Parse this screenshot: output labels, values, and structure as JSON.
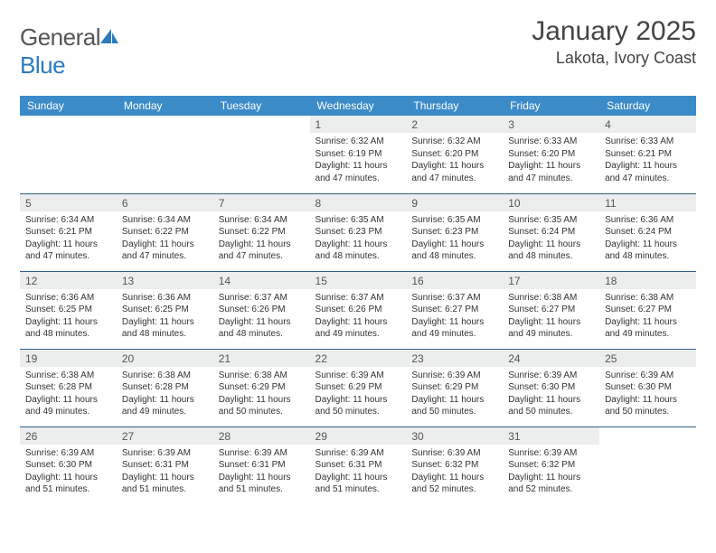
{
  "logo": {
    "text_general": "General",
    "text_blue": "Blue"
  },
  "title": "January 2025",
  "location": "Lakota, Ivory Coast",
  "header_bg": "#3b8bc9",
  "daynum_bg": "#eceded",
  "border_color": "#2f5f8a",
  "day_headers": [
    "Sunday",
    "Monday",
    "Tuesday",
    "Wednesday",
    "Thursday",
    "Friday",
    "Saturday"
  ],
  "weeks": [
    [
      null,
      null,
      null,
      {
        "n": "1",
        "sr": "6:32 AM",
        "ss": "6:19 PM",
        "dl": "11 hours and 47 minutes."
      },
      {
        "n": "2",
        "sr": "6:32 AM",
        "ss": "6:20 PM",
        "dl": "11 hours and 47 minutes."
      },
      {
        "n": "3",
        "sr": "6:33 AM",
        "ss": "6:20 PM",
        "dl": "11 hours and 47 minutes."
      },
      {
        "n": "4",
        "sr": "6:33 AM",
        "ss": "6:21 PM",
        "dl": "11 hours and 47 minutes."
      }
    ],
    [
      {
        "n": "5",
        "sr": "6:34 AM",
        "ss": "6:21 PM",
        "dl": "11 hours and 47 minutes."
      },
      {
        "n": "6",
        "sr": "6:34 AM",
        "ss": "6:22 PM",
        "dl": "11 hours and 47 minutes."
      },
      {
        "n": "7",
        "sr": "6:34 AM",
        "ss": "6:22 PM",
        "dl": "11 hours and 47 minutes."
      },
      {
        "n": "8",
        "sr": "6:35 AM",
        "ss": "6:23 PM",
        "dl": "11 hours and 48 minutes."
      },
      {
        "n": "9",
        "sr": "6:35 AM",
        "ss": "6:23 PM",
        "dl": "11 hours and 48 minutes."
      },
      {
        "n": "10",
        "sr": "6:35 AM",
        "ss": "6:24 PM",
        "dl": "11 hours and 48 minutes."
      },
      {
        "n": "11",
        "sr": "6:36 AM",
        "ss": "6:24 PM",
        "dl": "11 hours and 48 minutes."
      }
    ],
    [
      {
        "n": "12",
        "sr": "6:36 AM",
        "ss": "6:25 PM",
        "dl": "11 hours and 48 minutes."
      },
      {
        "n": "13",
        "sr": "6:36 AM",
        "ss": "6:25 PM",
        "dl": "11 hours and 48 minutes."
      },
      {
        "n": "14",
        "sr": "6:37 AM",
        "ss": "6:26 PM",
        "dl": "11 hours and 48 minutes."
      },
      {
        "n": "15",
        "sr": "6:37 AM",
        "ss": "6:26 PM",
        "dl": "11 hours and 49 minutes."
      },
      {
        "n": "16",
        "sr": "6:37 AM",
        "ss": "6:27 PM",
        "dl": "11 hours and 49 minutes."
      },
      {
        "n": "17",
        "sr": "6:38 AM",
        "ss": "6:27 PM",
        "dl": "11 hours and 49 minutes."
      },
      {
        "n": "18",
        "sr": "6:38 AM",
        "ss": "6:27 PM",
        "dl": "11 hours and 49 minutes."
      }
    ],
    [
      {
        "n": "19",
        "sr": "6:38 AM",
        "ss": "6:28 PM",
        "dl": "11 hours and 49 minutes."
      },
      {
        "n": "20",
        "sr": "6:38 AM",
        "ss": "6:28 PM",
        "dl": "11 hours and 49 minutes."
      },
      {
        "n": "21",
        "sr": "6:38 AM",
        "ss": "6:29 PM",
        "dl": "11 hours and 50 minutes."
      },
      {
        "n": "22",
        "sr": "6:39 AM",
        "ss": "6:29 PM",
        "dl": "11 hours and 50 minutes."
      },
      {
        "n": "23",
        "sr": "6:39 AM",
        "ss": "6:29 PM",
        "dl": "11 hours and 50 minutes."
      },
      {
        "n": "24",
        "sr": "6:39 AM",
        "ss": "6:30 PM",
        "dl": "11 hours and 50 minutes."
      },
      {
        "n": "25",
        "sr": "6:39 AM",
        "ss": "6:30 PM",
        "dl": "11 hours and 50 minutes."
      }
    ],
    [
      {
        "n": "26",
        "sr": "6:39 AM",
        "ss": "6:30 PM",
        "dl": "11 hours and 51 minutes."
      },
      {
        "n": "27",
        "sr": "6:39 AM",
        "ss": "6:31 PM",
        "dl": "11 hours and 51 minutes."
      },
      {
        "n": "28",
        "sr": "6:39 AM",
        "ss": "6:31 PM",
        "dl": "11 hours and 51 minutes."
      },
      {
        "n": "29",
        "sr": "6:39 AM",
        "ss": "6:31 PM",
        "dl": "11 hours and 51 minutes."
      },
      {
        "n": "30",
        "sr": "6:39 AM",
        "ss": "6:32 PM",
        "dl": "11 hours and 52 minutes."
      },
      {
        "n": "31",
        "sr": "6:39 AM",
        "ss": "6:32 PM",
        "dl": "11 hours and 52 minutes."
      },
      null
    ]
  ],
  "labels": {
    "sunrise": "Sunrise:",
    "sunset": "Sunset:",
    "daylight": "Daylight:"
  }
}
